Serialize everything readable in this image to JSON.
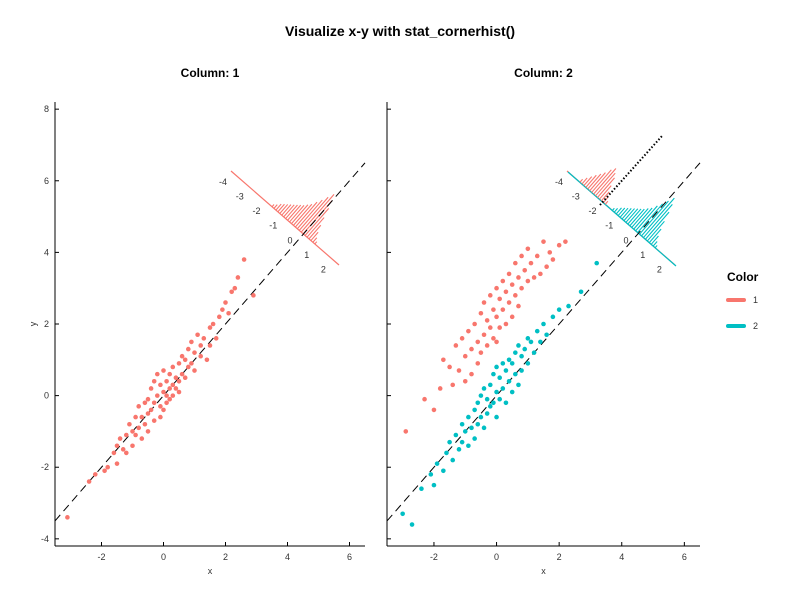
{
  "chart_data": {
    "type": "scatter",
    "title": "Visualize x-y with stat_cornerhist()",
    "xlabel": "x",
    "ylabel": "y",
    "xlim": [
      -3.5,
      6.5
    ],
    "ylim": [
      -4.2,
      8.2
    ],
    "x_ticks": [
      -2,
      0,
      2,
      4,
      6
    ],
    "y_ticks": [
      -4,
      -2,
      0,
      2,
      4,
      6,
      8
    ],
    "reference_line": {
      "slope": 1,
      "intercept": 0,
      "style": "dashed",
      "color": "#000000"
    },
    "legend": {
      "title": "Color",
      "position": "right",
      "entries": [
        {
          "label": "1",
          "color": "#F8766D"
        },
        {
          "label": "2",
          "color": "#00BFC4"
        }
      ]
    },
    "corner_histogram_axis_labels": [
      "-4",
      "-3",
      "-2",
      "-1",
      "0",
      "1",
      "2"
    ],
    "panels": [
      {
        "label": "Column: 1",
        "series": [
          {
            "name": "1",
            "color": "#F8766D",
            "x": [
              -3.1,
              -2.4,
              -2.2,
              -1.9,
              -1.8,
              -1.6,
              -1.5,
              -1.5,
              -1.4,
              -1.3,
              -1.2,
              -1.2,
              -1.1,
              -1.0,
              -1.0,
              -0.9,
              -0.9,
              -0.8,
              -0.8,
              -0.7,
              -0.7,
              -0.6,
              -0.6,
              -0.5,
              -0.5,
              -0.5,
              -0.4,
              -0.4,
              -0.3,
              -0.3,
              -0.3,
              -0.2,
              -0.2,
              -0.1,
              -0.1,
              -0.1,
              0.0,
              0.0,
              0.0,
              0.1,
              0.1,
              0.1,
              0.2,
              0.2,
              0.2,
              0.3,
              0.3,
              0.3,
              0.4,
              0.4,
              0.5,
              0.5,
              0.5,
              0.6,
              0.6,
              0.7,
              0.7,
              0.8,
              0.8,
              0.9,
              0.9,
              1.0,
              1.0,
              1.1,
              1.2,
              1.2,
              1.3,
              1.4,
              1.5,
              1.5,
              1.6,
              1.7,
              1.8,
              1.9,
              2.0,
              2.1,
              2.2,
              2.3,
              2.4,
              2.6,
              2.9
            ],
            "y": [
              -3.4,
              -2.4,
              -2.2,
              -2.1,
              -2.0,
              -1.6,
              -1.4,
              -1.9,
              -1.2,
              -1.5,
              -1.1,
              -1.6,
              -0.8,
              -1.0,
              -1.4,
              -0.6,
              -1.1,
              -0.9,
              -0.3,
              -0.6,
              -1.2,
              -0.2,
              -0.8,
              -0.1,
              -0.5,
              -1.0,
              0.2,
              -0.4,
              0.4,
              -0.2,
              -0.7,
              0.6,
              0.0,
              0.3,
              -0.3,
              -0.6,
              0.7,
              0.1,
              -0.4,
              0.4,
              0.0,
              -0.2,
              0.6,
              0.2,
              -0.1,
              0.8,
              0.3,
              0.0,
              0.5,
              0.2,
              0.9,
              0.4,
              0.1,
              1.1,
              0.6,
              1.0,
              0.5,
              1.3,
              0.8,
              1.5,
              0.9,
              1.2,
              0.7,
              1.7,
              1.4,
              1.1,
              1.6,
              1.0,
              1.9,
              1.4,
              2.0,
              1.6,
              2.2,
              2.4,
              2.6,
              2.3,
              2.9,
              3.0,
              3.3,
              3.8,
              2.8
            ]
          }
        ]
      },
      {
        "label": "Column: 2",
        "series": [
          {
            "name": "1",
            "color": "#F8766D",
            "x": [
              -2.9,
              -2.3,
              -2.0,
              -1.8,
              -1.7,
              -1.5,
              -1.4,
              -1.3,
              -1.2,
              -1.1,
              -1.0,
              -1.0,
              -0.9,
              -0.8,
              -0.8,
              -0.7,
              -0.6,
              -0.6,
              -0.5,
              -0.5,
              -0.4,
              -0.4,
              -0.3,
              -0.3,
              -0.2,
              -0.2,
              -0.1,
              -0.1,
              0.0,
              0.0,
              0.0,
              0.1,
              0.1,
              0.2,
              0.2,
              0.3,
              0.3,
              0.4,
              0.4,
              0.5,
              0.5,
              0.6,
              0.6,
              0.7,
              0.7,
              0.8,
              0.8,
              0.9,
              1.0,
              1.0,
              1.1,
              1.2,
              1.3,
              1.4,
              1.5,
              1.6,
              1.7,
              1.8,
              2.0,
              2.2
            ],
            "y": [
              -1.0,
              -0.1,
              -0.4,
              0.2,
              1.0,
              0.8,
              0.3,
              1.4,
              0.7,
              1.6,
              1.1,
              0.4,
              1.8,
              1.3,
              0.6,
              2.0,
              1.5,
              0.9,
              2.3,
              1.2,
              2.6,
              1.7,
              2.1,
              1.4,
              2.8,
              1.9,
              2.4,
              1.6,
              3.0,
              2.2,
              1.5,
              2.7,
              1.9,
              3.2,
              2.4,
              2.9,
              2.0,
              3.4,
              2.6,
              3.1,
              2.2,
              3.7,
              2.8,
              3.3,
              2.5,
              3.9,
              3.0,
              3.5,
              4.1,
              3.2,
              3.7,
              3.3,
              3.9,
              3.4,
              4.3,
              3.6,
              4.0,
              3.8,
              4.2,
              4.3
            ]
          },
          {
            "name": "2",
            "color": "#00BFC4",
            "x": [
              -3.0,
              -2.7,
              -2.4,
              -2.1,
              -2.0,
              -1.9,
              -1.7,
              -1.6,
              -1.5,
              -1.4,
              -1.3,
              -1.2,
              -1.1,
              -1.1,
              -1.0,
              -0.9,
              -0.9,
              -0.8,
              -0.7,
              -0.7,
              -0.6,
              -0.6,
              -0.5,
              -0.5,
              -0.4,
              -0.4,
              -0.3,
              -0.3,
              -0.2,
              -0.2,
              -0.1,
              -0.1,
              0.0,
              0.0,
              0.0,
              0.1,
              0.1,
              0.2,
              0.2,
              0.3,
              0.3,
              0.4,
              0.4,
              0.5,
              0.5,
              0.6,
              0.6,
              0.7,
              0.7,
              0.8,
              0.8,
              0.9,
              1.0,
              1.0,
              1.1,
              1.2,
              1.3,
              1.4,
              1.5,
              1.6,
              1.8,
              2.0,
              2.3,
              2.7,
              3.2
            ],
            "y": [
              -3.3,
              -3.6,
              -2.6,
              -2.2,
              -2.5,
              -1.9,
              -2.1,
              -1.6,
              -1.3,
              -1.8,
              -1.1,
              -1.5,
              -0.8,
              -1.3,
              -1.0,
              -0.6,
              -1.4,
              -0.9,
              -0.4,
              -1.2,
              -0.2,
              -0.8,
              0.0,
              -0.6,
              0.2,
              -0.9,
              -0.1,
              -0.5,
              0.3,
              -0.3,
              0.6,
              -0.2,
              0.8,
              0.1,
              -0.6,
              0.5,
              -0.1,
              0.9,
              0.2,
              0.7,
              -0.2,
              1.0,
              0.4,
              0.9,
              0.1,
              1.2,
              0.6,
              1.4,
              0.3,
              1.1,
              0.7,
              1.3,
              1.6,
              0.9,
              1.5,
              1.2,
              1.8,
              1.5,
              2.0,
              1.7,
              2.2,
              2.4,
              2.5,
              2.9,
              3.7
            ]
          }
        ]
      }
    ]
  }
}
